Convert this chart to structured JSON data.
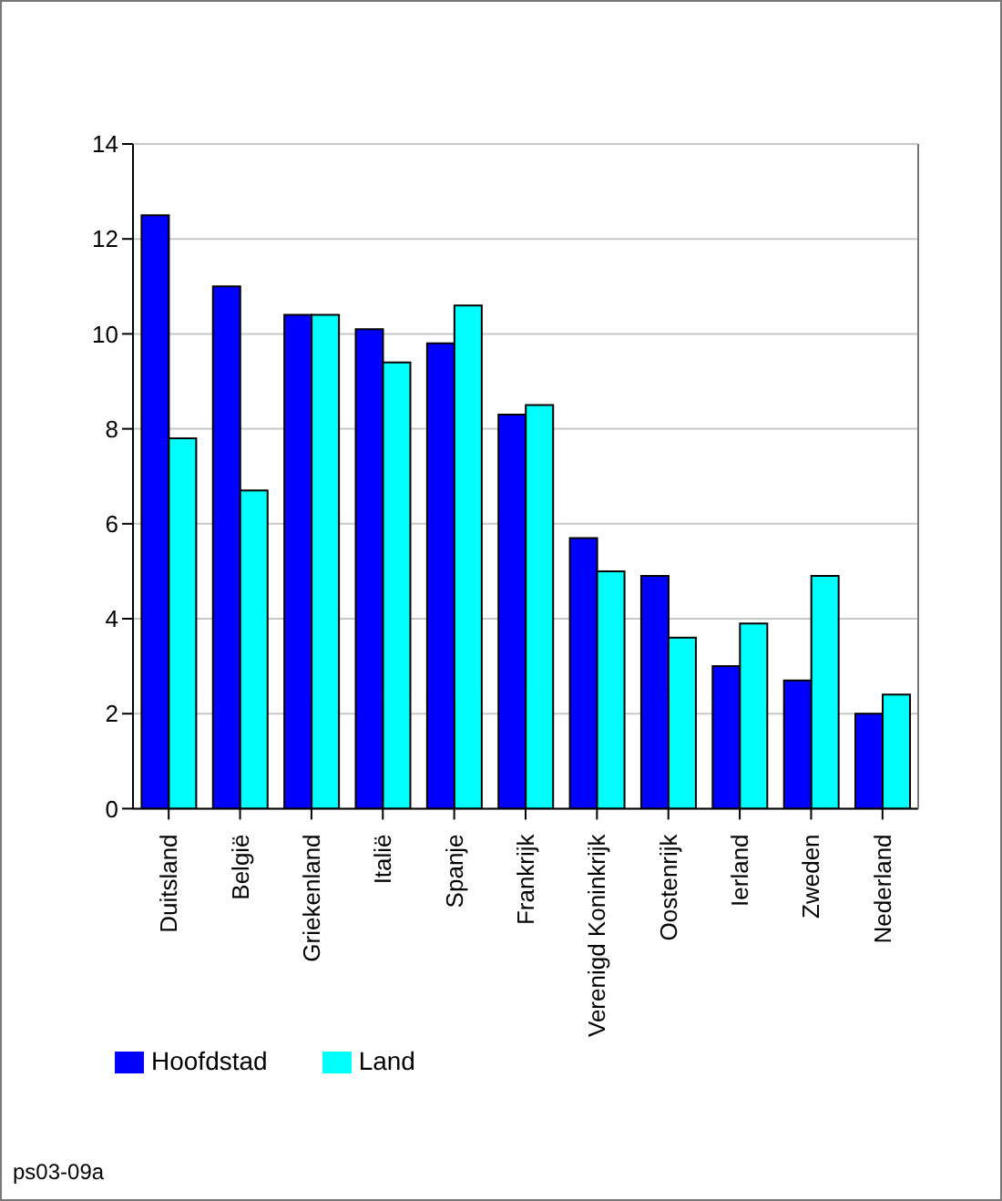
{
  "chart_data": {
    "type": "bar",
    "categories": [
      "Duitsland",
      "België",
      "Griekenland",
      "Italië",
      "Spanje",
      "Frankrijk",
      "Verenigd Koninkrijk",
      "Oostenrijk",
      "Ierland",
      "Zweden",
      "Nederland"
    ],
    "series": [
      {
        "name": "Hoofdstad",
        "color": "#0000ff",
        "values": [
          12.5,
          11,
          10.4,
          10.1,
          9.8,
          8.3,
          5.7,
          4.9,
          3.0,
          2.7,
          2.0
        ]
      },
      {
        "name": "Land",
        "color": "#00ffff",
        "values": [
          7.8,
          6.7,
          10.4,
          9.4,
          10.6,
          8.5,
          5.0,
          3.6,
          3.9,
          4.9,
          2.4
        ]
      }
    ],
    "ylim": [
      0,
      14
    ],
    "yticks": [
      0,
      2,
      4,
      6,
      8,
      10,
      12,
      14
    ],
    "grid": "y",
    "legend": "bottom left",
    "annotations": [
      "ps03-09a"
    ]
  }
}
